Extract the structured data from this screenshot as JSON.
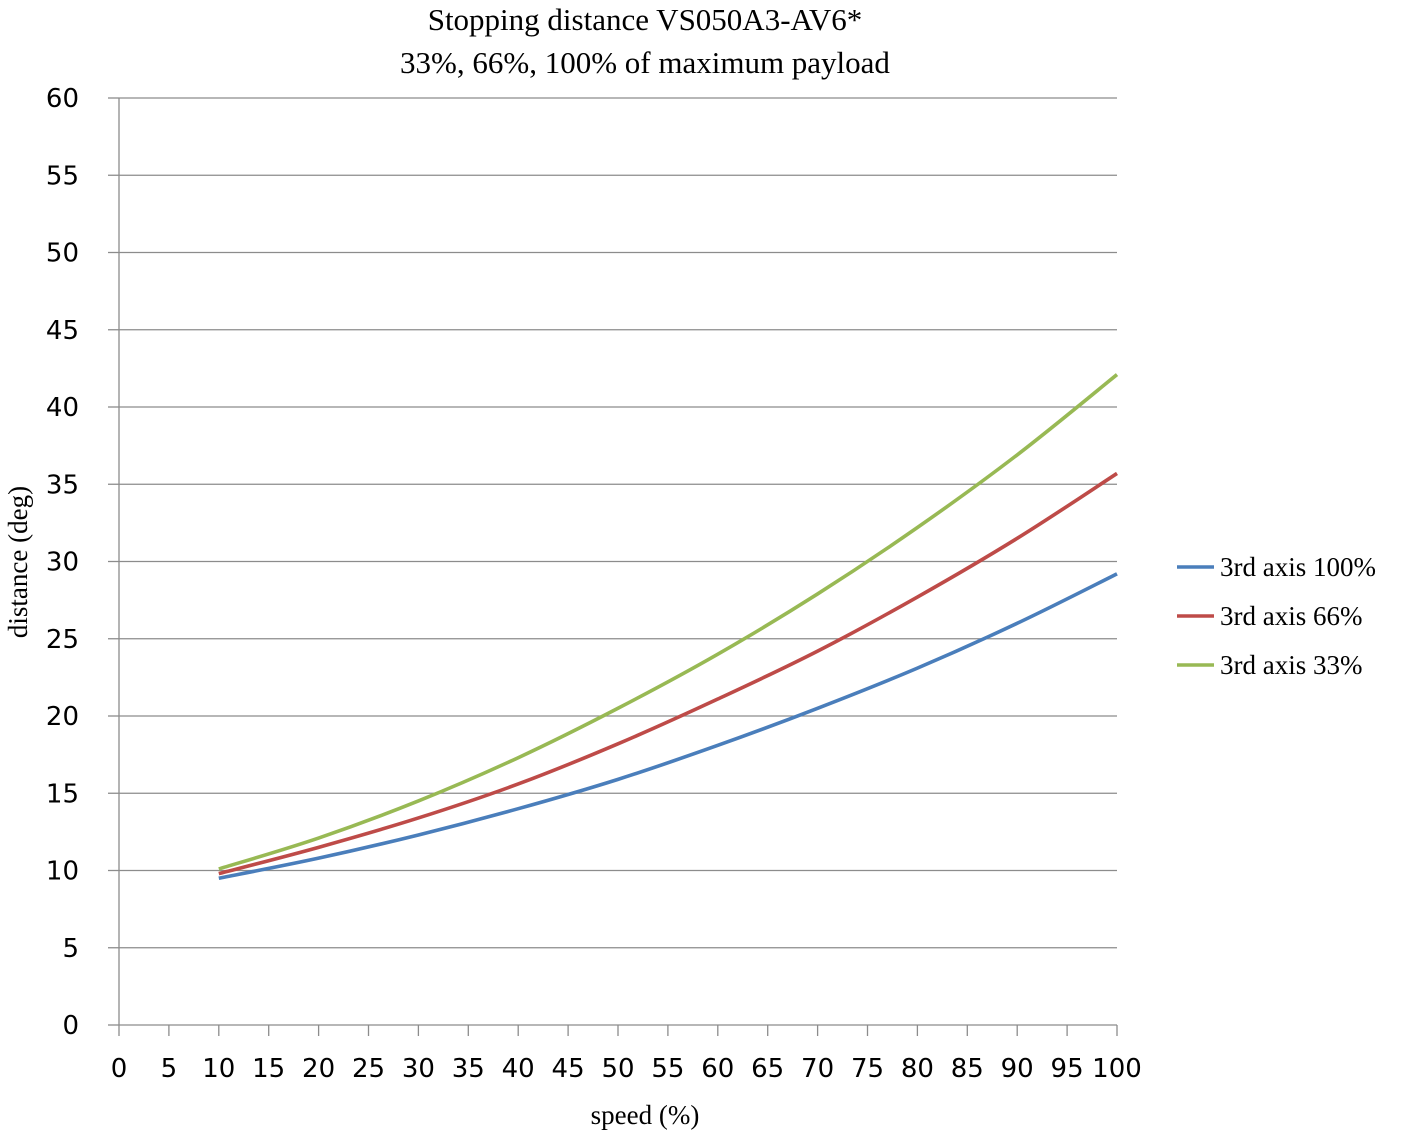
{
  "chart_data": {
    "type": "line",
    "title": "Stopping distance VS050A3-AV6*",
    "subtitle": "33%, 66%, 100% of maximum payload",
    "xlabel": "speed (%)",
    "ylabel": "distance (deg)",
    "xlim": [
      0,
      100
    ],
    "ylim": [
      0,
      60
    ],
    "x_ticks": [
      "0",
      "5",
      "10",
      "15",
      "20",
      "25",
      "30",
      "35",
      "40",
      "45",
      "50",
      "55",
      "60",
      "65",
      "70",
      "75",
      "80",
      "85",
      "90",
      "95",
      "100"
    ],
    "y_ticks": [
      "0",
      "5",
      "10",
      "15",
      "20",
      "25",
      "30",
      "35",
      "40",
      "45",
      "50",
      "55",
      "60"
    ],
    "x": [
      10,
      20,
      30,
      40,
      50,
      60,
      70,
      80,
      90,
      100
    ],
    "series": [
      {
        "name": "3rd axis  100%",
        "color": "#4a7ebb",
        "values": [
          9.5,
          10.8,
          12.3,
          14.0,
          15.9,
          18.1,
          20.5,
          23.1,
          26.0,
          29.2
        ]
      },
      {
        "name": "3rd axis  66%",
        "color": "#be4b48",
        "values": [
          9.8,
          11.5,
          13.4,
          15.6,
          18.2,
          21.1,
          24.2,
          27.7,
          31.5,
          35.7
        ]
      },
      {
        "name": "3rd axis  33%",
        "color": "#98b954",
        "values": [
          10.1,
          12.1,
          14.5,
          17.3,
          20.5,
          24.0,
          27.9,
          32.2,
          36.9,
          42.1
        ]
      }
    ],
    "grid": true,
    "grid_axis": "y",
    "legend_position": "right"
  }
}
